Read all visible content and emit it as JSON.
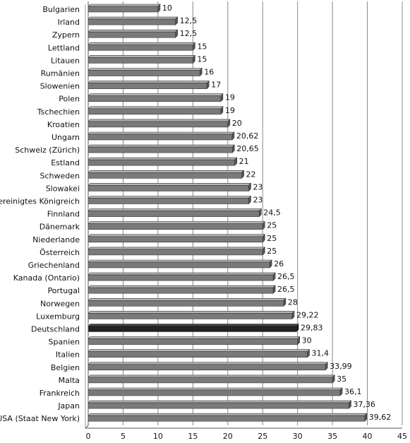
{
  "chart_data": {
    "type": "bar",
    "orientation": "horizontal",
    "title": "",
    "xlabel": "",
    "ylabel": "",
    "xlim": [
      0,
      45
    ],
    "xticks": [
      "0",
      "5",
      "10",
      "15",
      "20",
      "25",
      "30",
      "35",
      "40",
      "45"
    ],
    "grid": true,
    "legend": "none",
    "colors": {
      "bar": "#7a7a7a",
      "highlight": "#222222",
      "grid": "#888888"
    },
    "highlight_category": "Deutschland",
    "categories": [
      "Bulgarien",
      "Irland",
      "Zypern",
      "Lettland",
      "Litauen",
      "Rumänien",
      "Slowenien",
      "Polen",
      "Tschechien",
      "Kroatien",
      "Ungarn",
      "Schweiz (Zürich)",
      "Estland",
      "Schweden",
      "Slowakei",
      "Vereinigtes Königreich",
      "Finnland",
      "Dänemark",
      "Niederlande",
      "Österreich",
      "Griechenland",
      "Kanada (Ontario)",
      "Portugal",
      "Norwegen",
      "Luxemburg",
      "Deutschland",
      "Spanien",
      "Italien",
      "Belgien",
      "Malta",
      "Frankreich",
      "Japan",
      "USA (Staat New York)"
    ],
    "values": [
      10,
      12.5,
      12.5,
      15,
      15,
      16,
      17,
      19,
      19,
      20,
      20.62,
      20.65,
      21,
      22,
      23,
      23,
      24.5,
      25,
      25,
      25,
      26,
      26.5,
      26.5,
      28,
      29.22,
      29.83,
      30,
      31.4,
      33.99,
      35,
      36.1,
      37.36,
      39.62
    ],
    "value_labels": [
      "10",
      "12,5",
      "12,5",
      "15",
      "15",
      "16",
      "17",
      "19",
      "19",
      "20",
      "20,62",
      "20,65",
      "21",
      "22",
      "23",
      "23",
      "24,5",
      "25",
      "25",
      "25",
      "26",
      "26,5",
      "26,5",
      "28",
      "29,22",
      "29,83",
      "30",
      "31,4",
      "33,99",
      "35",
      "36,1",
      "37,36",
      "39,62"
    ]
  }
}
